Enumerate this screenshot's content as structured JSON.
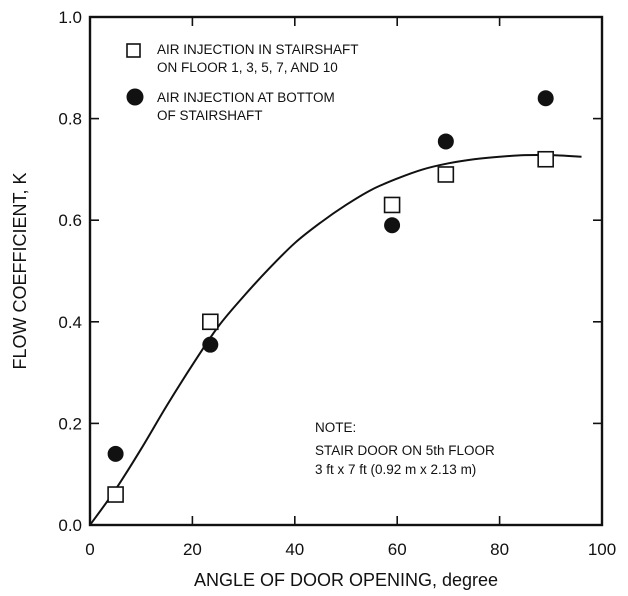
{
  "chart_data": {
    "type": "scatter",
    "xlabel": "ANGLE OF DOOR OPENING,  degree",
    "ylabel": "FLOW COEFFICIENT,  K",
    "xlim": [
      0,
      100
    ],
    "ylim": [
      0,
      1.0
    ],
    "x_ticks": [
      "0",
      "20",
      "40",
      "60",
      "80",
      "100"
    ],
    "y_ticks": [
      "0.0",
      "0.2",
      "0.4",
      "0.6",
      "0.8",
      "1.0"
    ],
    "grid": false,
    "legend_position": "top-left",
    "series": [
      {
        "name": "AIR INJECTION IN STAIRSHAFT ON FLOOR 1, 3, 5, 7, AND 10",
        "legend_lines": [
          "AIR INJECTION IN STAIRSHAFT",
          "ON FLOOR 1, 3, 5, 7, AND 10"
        ],
        "marker": "open-square",
        "points": [
          {
            "x": 5,
            "y": 0.06
          },
          {
            "x": 23.5,
            "y": 0.4
          },
          {
            "x": 59,
            "y": 0.63
          },
          {
            "x": 69.5,
            "y": 0.69
          },
          {
            "x": 89,
            "y": 0.72
          }
        ]
      },
      {
        "name": "AIR INJECTION AT BOTTOM OF STAIRSHAFT",
        "legend_lines": [
          "AIR INJECTION AT BOTTOM",
          "OF STAIRSHAFT"
        ],
        "marker": "filled-circle",
        "points": [
          {
            "x": 5,
            "y": 0.14
          },
          {
            "x": 23.5,
            "y": 0.355
          },
          {
            "x": 59,
            "y": 0.59
          },
          {
            "x": 69.5,
            "y": 0.755
          },
          {
            "x": 89,
            "y": 0.84
          }
        ]
      }
    ],
    "fit_curve": {
      "points": [
        {
          "x": 0,
          "y": 0.0
        },
        {
          "x": 5,
          "y": 0.07
        },
        {
          "x": 10,
          "y": 0.15
        },
        {
          "x": 15,
          "y": 0.235
        },
        {
          "x": 20,
          "y": 0.315
        },
        {
          "x": 25,
          "y": 0.39
        },
        {
          "x": 30,
          "y": 0.45
        },
        {
          "x": 35,
          "y": 0.505
        },
        {
          "x": 40,
          "y": 0.555
        },
        {
          "x": 45,
          "y": 0.595
        },
        {
          "x": 50,
          "y": 0.63
        },
        {
          "x": 55,
          "y": 0.66
        },
        {
          "x": 60,
          "y": 0.682
        },
        {
          "x": 65,
          "y": 0.7
        },
        {
          "x": 70,
          "y": 0.712
        },
        {
          "x": 75,
          "y": 0.72
        },
        {
          "x": 80,
          "y": 0.725
        },
        {
          "x": 85,
          "y": 0.728
        },
        {
          "x": 90,
          "y": 0.728
        },
        {
          "x": 96,
          "y": 0.725
        }
      ]
    },
    "note": {
      "title": "NOTE:",
      "lines": [
        "STAIR DOOR ON 5th FLOOR",
        "3 ft x 7 ft  (0.92 m x 2.13 m)"
      ]
    }
  }
}
